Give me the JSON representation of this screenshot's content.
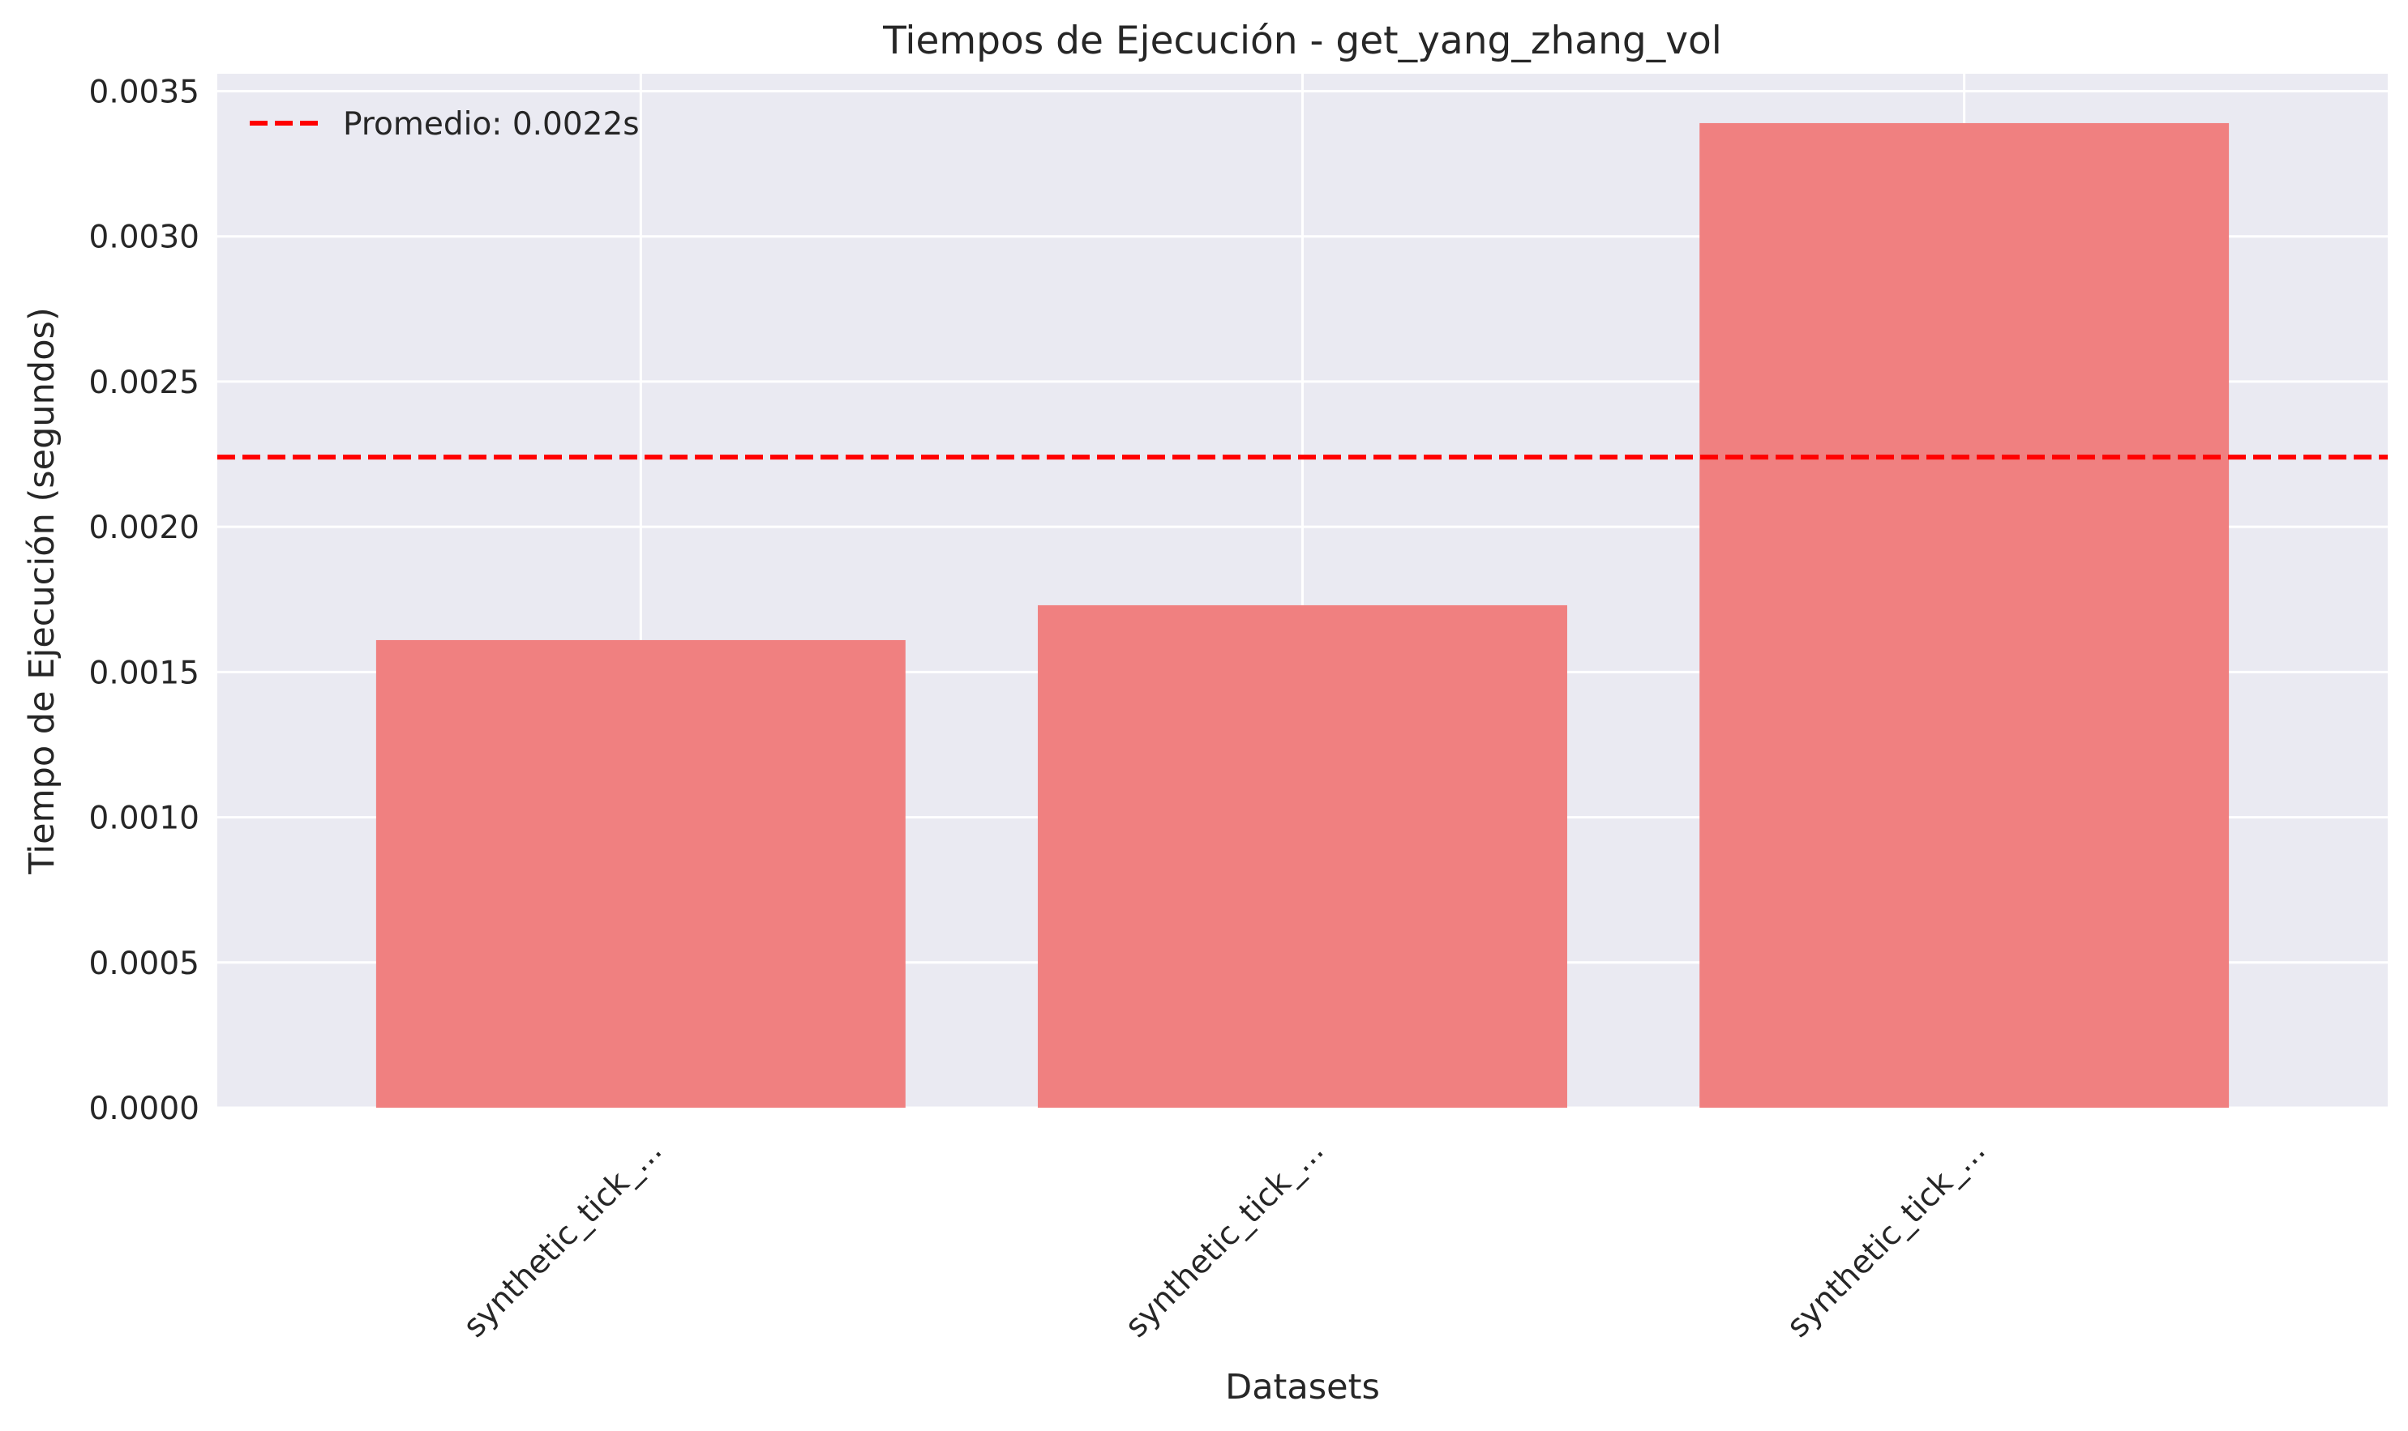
{
  "chart_data": {
    "type": "bar",
    "title": "Tiempos de Ejecución - get_yang_zhang_vol",
    "xlabel": "Datasets",
    "ylabel": "Tiempo de Ejecución (segundos)",
    "categories": [
      "synthetic_tick_...",
      "synthetic_tick_...",
      "synthetic_tick_..."
    ],
    "values": [
      0.00161,
      0.00173,
      0.00339
    ],
    "ylim": [
      0,
      0.00356
    ],
    "yticks": [
      "0.0000",
      "0.0005",
      "0.0010",
      "0.0015",
      "0.0020",
      "0.0025",
      "0.0030",
      "0.0035"
    ],
    "ytick_values": [
      0,
      0.0005,
      0.001,
      0.0015,
      0.002,
      0.0025,
      0.003,
      0.0035
    ],
    "reference_line": {
      "value": 0.00224,
      "label": "Promedio: 0.0022s",
      "style": "dashed",
      "color": "#ff0000"
    },
    "bar_color": "#f08080",
    "background_color": "#eaeaf2",
    "grid": true,
    "legend_position": "upper-left"
  }
}
